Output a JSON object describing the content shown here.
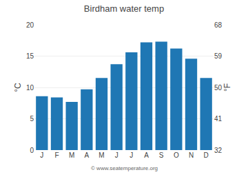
{
  "chart_data": {
    "type": "bar",
    "title": "Birdham water temp",
    "categories": [
      "J",
      "F",
      "M",
      "A",
      "M",
      "J",
      "J",
      "A",
      "S",
      "O",
      "N",
      "D"
    ],
    "values": [
      8.6,
      8.4,
      7.7,
      9.7,
      11.5,
      13.7,
      15.6,
      17.2,
      17.3,
      16.2,
      14.6,
      11.5
    ],
    "ylabel": "°C",
    "y2label": "°F",
    "ylim": [
      0,
      20
    ],
    "yticks": [
      0,
      5,
      10,
      15,
      20
    ],
    "y2lim": [
      32,
      68
    ],
    "y2ticks": [
      32,
      41,
      50,
      59,
      68
    ],
    "grid": true,
    "annotations": [
      "© www.seatemperature.org"
    ]
  }
}
